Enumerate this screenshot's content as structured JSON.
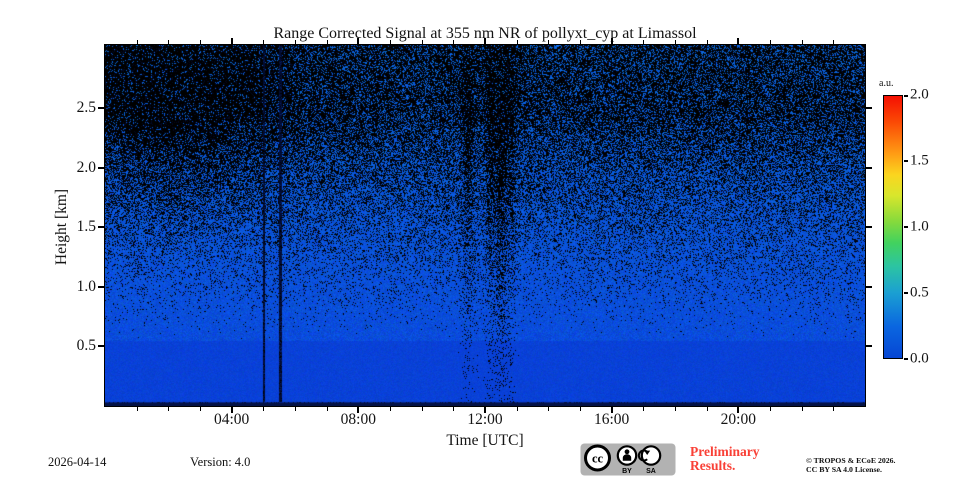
{
  "title": "Range Corrected Signal at 355 nm NR of pollyxt_cyp at Limassol",
  "chart_data": {
    "type": "heatmap",
    "title": "Range Corrected Signal at 355 nm NR of pollyxt_cyp at Limassol",
    "xlabel": "Time [UTC]",
    "ylabel": "Height [km]",
    "x_range_hours": [
      0,
      24
    ],
    "y_range_km": [
      0,
      3.03
    ],
    "x_major_ticks": [
      {
        "hour": 4,
        "label": "04:00"
      },
      {
        "hour": 8,
        "label": "08:00"
      },
      {
        "hour": 12,
        "label": "12:00"
      },
      {
        "hour": 16,
        "label": "16:00"
      },
      {
        "hour": 20,
        "label": "20:00"
      }
    ],
    "x_minor_tick_interval_hours": 1,
    "y_major_ticks": [
      {
        "km": 0.5,
        "label": "0.5"
      },
      {
        "km": 1.0,
        "label": "1.0"
      },
      {
        "km": 1.5,
        "label": "1.5"
      },
      {
        "km": 2.0,
        "label": "2.0"
      },
      {
        "km": 2.5,
        "label": "2.5"
      }
    ],
    "grid": false,
    "colorbar": {
      "unit_label": "a.u.",
      "range": [
        0.0,
        2.0
      ],
      "ticks": [
        {
          "value": 0.0,
          "label": "0.0"
        },
        {
          "value": 0.5,
          "label": "0.5"
        },
        {
          "value": 1.0,
          "label": "1.0"
        },
        {
          "value": 1.5,
          "label": "1.5"
        },
        {
          "value": 2.0,
          "label": "2.0"
        }
      ],
      "colormap_stops": [
        {
          "frac": 0.0,
          "color": "#0646d4"
        },
        {
          "frac": 0.12,
          "color": "#0a66e0"
        },
        {
          "frac": 0.25,
          "color": "#1ba0d2"
        },
        {
          "frac": 0.35,
          "color": "#2cc4a2"
        },
        {
          "frac": 0.44,
          "color": "#42d25e"
        },
        {
          "frac": 0.52,
          "color": "#85da3c"
        },
        {
          "frac": 0.62,
          "color": "#d8e62c"
        },
        {
          "frac": 0.7,
          "color": "#fbd51f"
        },
        {
          "frac": 0.78,
          "color": "#ff9c14"
        },
        {
          "frac": 0.9,
          "color": "#fb4a05"
        },
        {
          "frac": 1.0,
          "color": "#f51002"
        }
      ]
    },
    "signal_appearance": {
      "description": "Near-range lidar quicklook: solid blue low-signal field below ~0.55 km, increasingly dense black noise speckle with altitude, densest before ~06:00 UTC at high altitude",
      "base_blue": "#0848dc",
      "noise_black": "#000000",
      "bottom_band_navy": "#041c4a",
      "noise_profile": {
        "clear_below_km": 0.55,
        "top_km": 3.03,
        "max_black_fraction": 0.72,
        "morning_boost": 0.38
      },
      "gap_lines_hours": [
        5.0,
        5.53
      ],
      "dropout_streaks": [
        {
          "hour": 11.45,
          "width": 0.18,
          "strength": 0.26
        },
        {
          "hour": 12.15,
          "width": 0.14,
          "strength": 0.3
        },
        {
          "hour": 12.5,
          "width": 0.2,
          "strength": 0.42
        },
        {
          "hour": 12.85,
          "width": 0.12,
          "strength": 0.22
        }
      ]
    }
  },
  "footer": {
    "date": "2026-04-14",
    "version": "Version: 4.0",
    "preliminary_line1": "Preliminary",
    "preliminary_line2": "Results.",
    "preliminary_color": "#f94036",
    "copyright_line1": "© TROPOS & ECoE 2026.",
    "copyright_line2": "CC BY SA 4.0 License.",
    "cc_badge": {
      "cc_text": "cc",
      "labels": [
        "BY",
        "SA"
      ],
      "background": "#b2b2b2"
    }
  }
}
